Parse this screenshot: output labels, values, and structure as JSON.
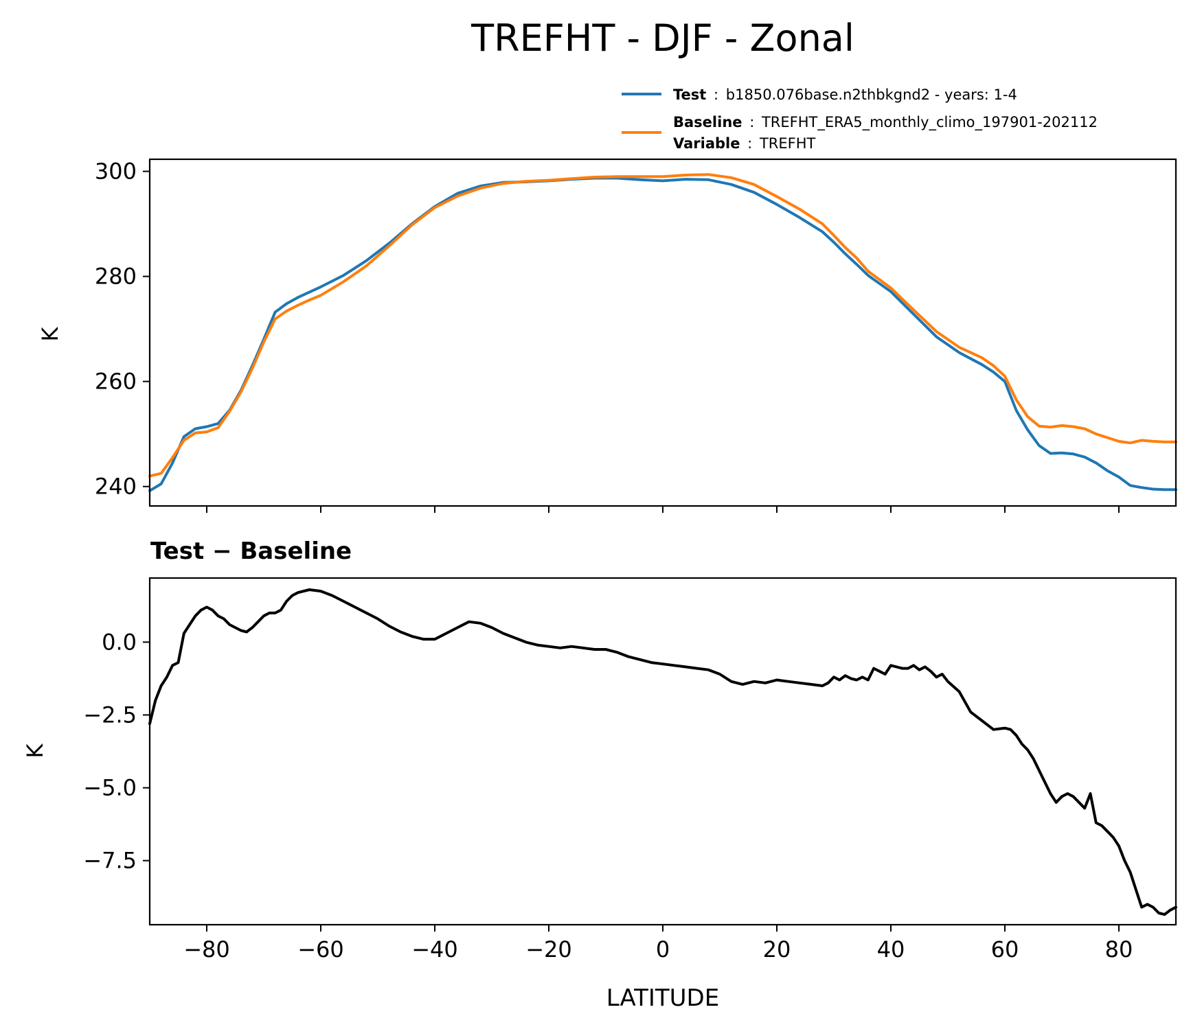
{
  "figure": {
    "title": "TREFHT - DJF - Zonal",
    "xlabel": "LATITUDE"
  },
  "legend": {
    "placement": "above-top-right",
    "entries": [
      {
        "series": "test",
        "key": "Test",
        "sep": ":",
        "text": "b1850.076base.n2thbkgnd2 - years: 1-4",
        "color": "#1f77b4"
      },
      {
        "series": "baseline",
        "key": "Baseline",
        "sep": ":",
        "text": "TREFHT_ERA5_monthly_climo_197901-202112",
        "color": "#ff7f0e"
      },
      {
        "series": null,
        "key": "Variable",
        "sep": ":",
        "text": "TREFHT",
        "color": null
      }
    ]
  },
  "chart_data": [
    {
      "id": "top",
      "type": "line",
      "title": "",
      "xlabel": "",
      "ylabel": "K",
      "xlim": [
        -90,
        90
      ],
      "ylim": [
        236.3,
        302.3
      ],
      "xticks": [
        -80,
        -60,
        -40,
        -20,
        0,
        20,
        40,
        60,
        80
      ],
      "yticks": [
        240,
        260,
        280,
        300
      ],
      "ytick_labels": [
        "240",
        "260",
        "280",
        "300"
      ],
      "grid": false,
      "series": [
        {
          "key": "test",
          "color": "#1f77b4",
          "x": [
            -90,
            -88,
            -86,
            -84,
            -82,
            -80,
            -78,
            -76,
            -74,
            -72,
            -70,
            -68,
            -66,
            -64,
            -62,
            -60,
            -56,
            -52,
            -48,
            -44,
            -40,
            -36,
            -32,
            -28,
            -24,
            -20,
            -16,
            -12,
            -8,
            -4,
            0,
            4,
            8,
            12,
            16,
            20,
            24,
            28,
            30,
            32,
            34,
            36,
            40,
            44,
            48,
            52,
            56,
            58,
            60,
            62,
            64,
            66,
            68,
            70,
            72,
            74,
            76,
            78,
            80,
            82,
            84,
            86,
            88,
            90
          ],
          "y": [
            239.2,
            240.5,
            244.5,
            249.5,
            251.0,
            251.4,
            252.0,
            254.5,
            258.3,
            263.0,
            268.0,
            273.2,
            274.8,
            276.0,
            277.0,
            278.0,
            280.2,
            283.0,
            286.3,
            290.0,
            293.3,
            295.8,
            297.2,
            297.9,
            298.0,
            298.2,
            298.5,
            298.7,
            298.7,
            298.4,
            298.2,
            298.5,
            298.4,
            297.5,
            296.0,
            293.7,
            291.2,
            288.5,
            286.5,
            284.3,
            282.3,
            280.2,
            277.1,
            272.8,
            268.5,
            265.5,
            263.2,
            261.8,
            260.0,
            254.5,
            250.8,
            247.8,
            246.3,
            246.4,
            246.2,
            245.6,
            244.5,
            243.0,
            241.8,
            240.2,
            239.8,
            239.5,
            239.4,
            239.4
          ]
        },
        {
          "key": "baseline",
          "color": "#ff7f0e",
          "x": [
            -90,
            -88,
            -86,
            -84,
            -82,
            -80,
            -78,
            -76,
            -74,
            -72,
            -70,
            -68,
            -66,
            -64,
            -62,
            -60,
            -56,
            -52,
            -48,
            -44,
            -40,
            -36,
            -32,
            -28,
            -24,
            -20,
            -16,
            -12,
            -8,
            -4,
            0,
            4,
            8,
            12,
            16,
            20,
            24,
            28,
            30,
            32,
            34,
            36,
            40,
            44,
            48,
            52,
            56,
            58,
            60,
            62,
            64,
            66,
            68,
            70,
            72,
            74,
            76,
            78,
            80,
            82,
            84,
            86,
            88,
            90
          ],
          "y": [
            242.0,
            242.5,
            245.5,
            248.8,
            250.2,
            250.4,
            251.2,
            254.3,
            258.0,
            262.5,
            267.5,
            271.9,
            273.4,
            274.5,
            275.5,
            276.4,
            279.0,
            282.0,
            285.8,
            289.8,
            293.1,
            295.3,
            296.8,
            297.7,
            298.1,
            298.3,
            298.6,
            298.9,
            299.0,
            299.0,
            299.0,
            299.3,
            299.4,
            298.8,
            297.5,
            295.2,
            292.8,
            290.0,
            287.8,
            285.5,
            283.5,
            281.0,
            277.8,
            273.6,
            269.5,
            266.5,
            264.5,
            263.0,
            261.0,
            256.5,
            253.3,
            251.5,
            251.3,
            251.6,
            251.4,
            251.0,
            250.0,
            249.3,
            248.6,
            248.3,
            248.8,
            248.6,
            248.5,
            248.5
          ]
        }
      ]
    },
    {
      "id": "bottom",
      "type": "line",
      "title": "Test − Baseline",
      "xlabel": "LATITUDE",
      "ylabel": "K",
      "xlim": [
        -90,
        90
      ],
      "ylim": [
        -9.7,
        2.2
      ],
      "xticks": [
        -80,
        -60,
        -40,
        -20,
        0,
        20,
        40,
        60,
        80
      ],
      "xtick_labels": [
        "−80",
        "−60",
        "−40",
        "−20",
        "0",
        "20",
        "40",
        "60",
        "80"
      ],
      "yticks": [
        0,
        -2.5,
        -5,
        -7.5
      ],
      "ytick_labels": [
        "0.0",
        "−2.5",
        "−5.0",
        "−7.5"
      ],
      "grid": false,
      "series": [
        {
          "key": "difference",
          "color": "#000000",
          "x": [
            -90,
            -89,
            -88,
            -87,
            -86,
            -85,
            -84,
            -83,
            -82,
            -81,
            -80,
            -79,
            -78,
            -77,
            -76,
            -75,
            -74,
            -73,
            -72,
            -71,
            -70,
            -69,
            -68,
            -67,
            -66,
            -65,
            -64,
            -62,
            -60,
            -58,
            -56,
            -54,
            -52,
            -50,
            -48,
            -46,
            -44,
            -42,
            -40,
            -38,
            -36,
            -34,
            -32,
            -30,
            -28,
            -26,
            -24,
            -22,
            -20,
            -18,
            -16,
            -14,
            -12,
            -10,
            -8,
            -6,
            -4,
            -2,
            0,
            2,
            4,
            6,
            8,
            10,
            12,
            14,
            16,
            18,
            20,
            22,
            24,
            26,
            28,
            29,
            30,
            31,
            32,
            33,
            34,
            35,
            36,
            37,
            38,
            39,
            40,
            41,
            42,
            43,
            44,
            45,
            46,
            47,
            48,
            49,
            50,
            52,
            54,
            56,
            58,
            60,
            61,
            62,
            63,
            64,
            65,
            66,
            67,
            68,
            69,
            70,
            71,
            72,
            73,
            74,
            75,
            76,
            77,
            78,
            79,
            80,
            81,
            82,
            83,
            84,
            85,
            86,
            87,
            88,
            89,
            90
          ],
          "y": [
            -2.8,
            -2.0,
            -1.5,
            -1.2,
            -0.8,
            -0.7,
            0.3,
            0.6,
            0.9,
            1.1,
            1.2,
            1.1,
            0.9,
            0.8,
            0.6,
            0.5,
            0.4,
            0.35,
            0.5,
            0.7,
            0.9,
            1.0,
            1.0,
            1.1,
            1.4,
            1.6,
            1.7,
            1.8,
            1.75,
            1.6,
            1.4,
            1.2,
            1.0,
            0.8,
            0.55,
            0.35,
            0.2,
            0.1,
            0.1,
            0.3,
            0.5,
            0.7,
            0.65,
            0.5,
            0.3,
            0.15,
            0.0,
            -0.1,
            -0.15,
            -0.2,
            -0.15,
            -0.2,
            -0.25,
            -0.25,
            -0.35,
            -0.5,
            -0.6,
            -0.7,
            -0.75,
            -0.8,
            -0.85,
            -0.9,
            -0.95,
            -1.1,
            -1.35,
            -1.45,
            -1.35,
            -1.4,
            -1.3,
            -1.35,
            -1.4,
            -1.45,
            -1.5,
            -1.4,
            -1.2,
            -1.3,
            -1.15,
            -1.25,
            -1.3,
            -1.2,
            -1.3,
            -0.9,
            -1.0,
            -1.1,
            -0.8,
            -0.85,
            -0.9,
            -0.9,
            -0.8,
            -0.95,
            -0.85,
            -1.0,
            -1.2,
            -1.1,
            -1.35,
            -1.7,
            -2.4,
            -2.7,
            -3.0,
            -2.95,
            -3.0,
            -3.2,
            -3.5,
            -3.7,
            -4.0,
            -4.4,
            -4.8,
            -5.2,
            -5.5,
            -5.3,
            -5.2,
            -5.3,
            -5.5,
            -5.7,
            -5.2,
            -6.2,
            -6.3,
            -6.5,
            -6.7,
            -7.0,
            -7.5,
            -7.9,
            -8.5,
            -9.1,
            -9.0,
            -9.1,
            -9.3,
            -9.35,
            -9.2,
            -9.1
          ]
        }
      ]
    }
  ]
}
